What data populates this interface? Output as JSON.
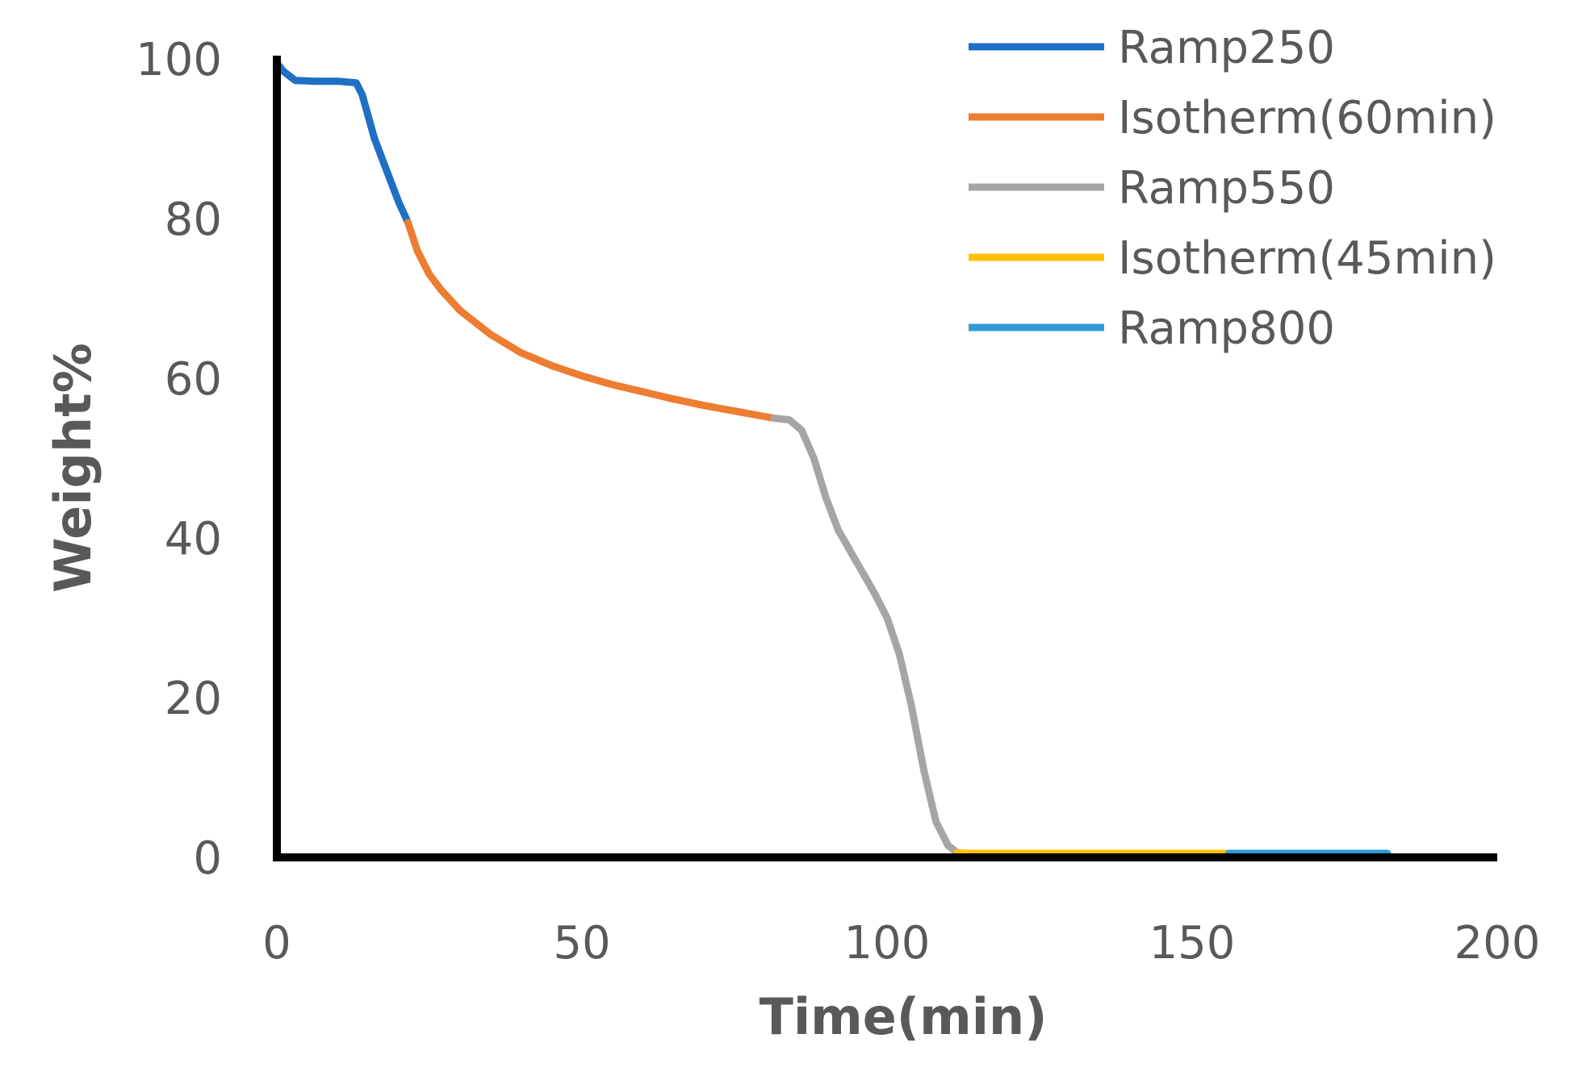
{
  "chart_data": {
    "type": "line",
    "title": "",
    "xlabel": "Time(min)",
    "ylabel": "Weight%",
    "xlim": [
      0,
      200
    ],
    "ylim": [
      0,
      100
    ],
    "xticks": [
      0,
      50,
      100,
      150,
      200
    ],
    "yticks": [
      0,
      20,
      40,
      60,
      80,
      100
    ],
    "grid": false,
    "legend_position": "top-right",
    "series": [
      {
        "name": "Ramp250",
        "color": "#1F6FC5",
        "points": [
          [
            0,
            99.5
          ],
          [
            1,
            98.5
          ],
          [
            3,
            97.3
          ],
          [
            6,
            97.2
          ],
          [
            10,
            97.2
          ],
          [
            13,
            97.0
          ],
          [
            14,
            95.5
          ],
          [
            16,
            90.0
          ],
          [
            18,
            86.0
          ],
          [
            20,
            82.0
          ],
          [
            21.5,
            79.5
          ]
        ]
      },
      {
        "name": "Isotherm(60min)",
        "color": "#ED7D31",
        "points": [
          [
            21.5,
            79.5
          ],
          [
            23,
            76.0
          ],
          [
            25,
            73.0
          ],
          [
            27,
            71.0
          ],
          [
            30,
            68.5
          ],
          [
            35,
            65.5
          ],
          [
            40,
            63.2
          ],
          [
            45,
            61.6
          ],
          [
            50,
            60.3
          ],
          [
            55,
            59.2
          ],
          [
            60,
            58.3
          ],
          [
            65,
            57.4
          ],
          [
            70,
            56.6
          ],
          [
            75,
            55.9
          ],
          [
            80,
            55.2
          ],
          [
            81.5,
            55.0
          ]
        ]
      },
      {
        "name": "Ramp550",
        "color": "#A5A5A5",
        "points": [
          [
            81.5,
            55.0
          ],
          [
            84,
            54.8
          ],
          [
            86,
            53.5
          ],
          [
            88,
            50.0
          ],
          [
            90,
            45.0
          ],
          [
            92,
            41.0
          ],
          [
            95,
            37.0
          ],
          [
            98,
            33.0
          ],
          [
            100,
            30.0
          ],
          [
            102,
            25.5
          ],
          [
            104,
            19.0
          ],
          [
            106,
            11.0
          ],
          [
            108,
            4.5
          ],
          [
            110,
            1.5
          ],
          [
            111.5,
            0.6
          ]
        ]
      },
      {
        "name": "Isotherm(45min)",
        "color": "#FFC000",
        "points": [
          [
            111.5,
            0.6
          ],
          [
            113,
            0.5
          ],
          [
            130,
            0.5
          ],
          [
            145,
            0.5
          ],
          [
            156,
            0.5
          ]
        ]
      },
      {
        "name": "Ramp800",
        "color": "#2E9BD6",
        "points": [
          [
            156,
            0.5
          ],
          [
            165,
            0.5
          ],
          [
            175,
            0.5
          ],
          [
            182,
            0.5
          ]
        ]
      }
    ]
  }
}
